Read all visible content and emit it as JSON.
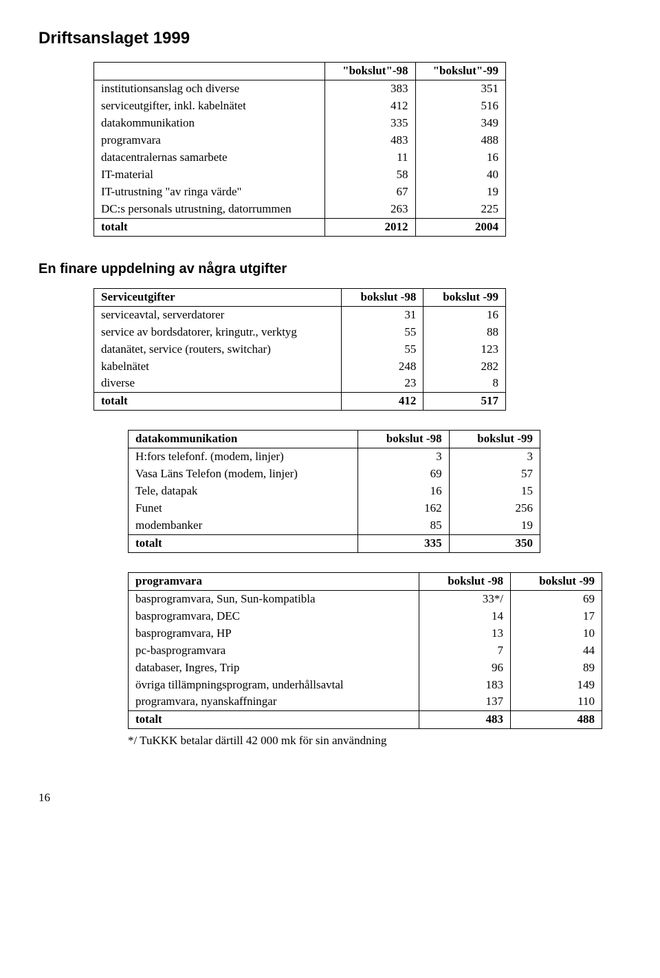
{
  "page_title": "Driftsanslaget 1999",
  "section2_title": "En finare uppdelning av några utgifter",
  "col_headers": {
    "b98": "\"bokslut\"-98",
    "b99": "\"bokslut\"-99"
  },
  "col_headers_plain": {
    "b98": "bokslut -98",
    "b99": "bokslut -99"
  },
  "table1": {
    "rows": [
      {
        "label": "institutionsanslag och diverse",
        "b98": "383",
        "b99": "351"
      },
      {
        "label": "serviceutgifter, inkl. kabelnätet",
        "b98": "412",
        "b99": "516"
      },
      {
        "label": "datakommunikation",
        "b98": "335",
        "b99": "349"
      },
      {
        "label": "programvara",
        "b98": "483",
        "b99": "488"
      },
      {
        "label": "datacentralernas samarbete",
        "b98": "11",
        "b99": "16"
      },
      {
        "label": "IT-material",
        "b98": "58",
        "b99": "40"
      },
      {
        "label": "IT-utrustning \"av ringa värde\"",
        "b98": "67",
        "b99": "19"
      },
      {
        "label": "DC:s personals utrustning, datorrummen",
        "b98": "263",
        "b99": "225"
      }
    ],
    "total": {
      "label": "totalt",
      "b98": "2012",
      "b99": "2004"
    }
  },
  "table2": {
    "header_label": "Serviceutgifter",
    "rows": [
      {
        "label": "serviceavtal, serverdatorer",
        "b98": "31",
        "b99": "16"
      },
      {
        "label": "service av bordsdatorer, kringutr., verktyg",
        "b98": "55",
        "b99": "88"
      },
      {
        "label": "datanätet, service (routers, switchar)",
        "b98": "55",
        "b99": "123"
      },
      {
        "label": "kabelnätet",
        "b98": "248",
        "b99": "282"
      },
      {
        "label": "diverse",
        "b98": "23",
        "b99": "8"
      }
    ],
    "total": {
      "label": "totalt",
      "b98": "412",
      "b99": "517"
    }
  },
  "table3": {
    "header_label": "datakommunikation",
    "rows": [
      {
        "label": "H:fors telefonf. (modem, linjer)",
        "b98": "3",
        "b99": "3"
      },
      {
        "label": "Vasa Läns Telefon (modem, linjer)",
        "b98": "69",
        "b99": "57"
      },
      {
        "label": "Tele, datapak",
        "b98": "16",
        "b99": "15"
      },
      {
        "label": "Funet",
        "b98": "162",
        "b99": "256"
      },
      {
        "label": "modembanker",
        "b98": "85",
        "b99": "19"
      }
    ],
    "total": {
      "label": "totalt",
      "b98": "335",
      "b99": "350"
    }
  },
  "table4": {
    "header_label": "programvara",
    "rows": [
      {
        "label": "basprogramvara, Sun, Sun-kompatibla",
        "b98": "33*/",
        "b99": "69"
      },
      {
        "label": "basprogramvara, DEC",
        "b98": "14",
        "b99": "17"
      },
      {
        "label": "basprogramvara, HP",
        "b98": "13",
        "b99": "10"
      },
      {
        "label": "pc-basprogramvara",
        "b98": "7",
        "b99": "44"
      },
      {
        "label": "databaser, Ingres, Trip",
        "b98": "96",
        "b99": "89"
      },
      {
        "label": "övriga tillämpningsprogram, underhållsavtal",
        "b98": "183",
        "b99": "149"
      },
      {
        "label": "programvara, nyanskaffningar",
        "b98": "137",
        "b99": "110"
      }
    ],
    "total": {
      "label": "totalt",
      "b98": "483",
      "b99": "488"
    }
  },
  "footnote": "*/ TuKKK betalar därtill 42 000 mk för sin användning",
  "page_number": "16"
}
